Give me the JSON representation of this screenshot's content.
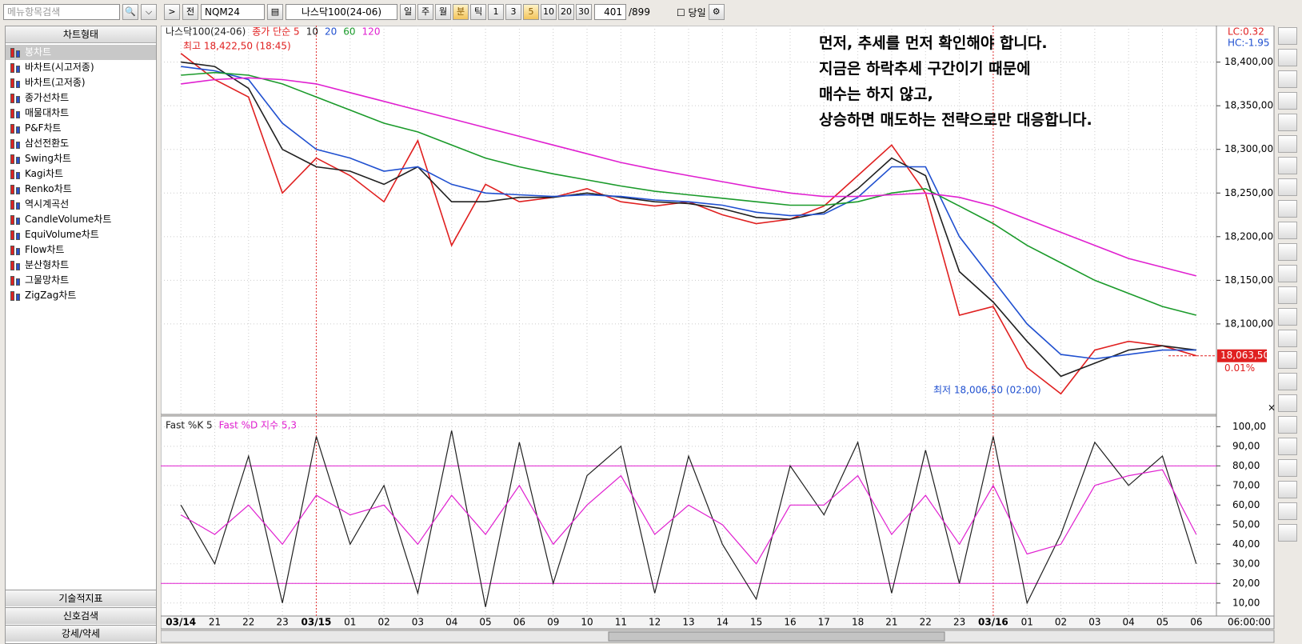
{
  "search": {
    "placeholder": "메뉴항목검색"
  },
  "toolbar": {
    "nav": ">",
    "prev": "전",
    "code": "NQM24",
    "name": "나스닥100(24-06)",
    "periods": [
      "일",
      "주",
      "월",
      "분",
      "틱",
      "1",
      "3",
      "5",
      "10",
      "20",
      "30"
    ],
    "count": "401",
    "total": "/899",
    "today": "당일"
  },
  "sidebar": {
    "header": "차트형태",
    "items": [
      "봉차트",
      "바차트(시고저종)",
      "바차트(고저종)",
      "종가선차트",
      "매물대차트",
      "P&F차트",
      "삼선전환도",
      "Swing차트",
      "Kagi차트",
      "Renko차트",
      "역시계곡선",
      "CandleVolume차트",
      "EquiVolume차트",
      "Flow차트",
      "분산형차트",
      "그물망차트",
      "ZigZag차트"
    ],
    "tabs": [
      "기술적지표",
      "신호검색",
      "강세/약세"
    ]
  },
  "annotation": [
    "먼저, 추세를 먼저 확인해야 합니다.",
    "지금은 하락추세 구간이기 때문에",
    "매수는 하지 않고,",
    "상승하면 매도하는 전략으로만 대응합니다."
  ],
  "x_readout": "06:00:00",
  "chart_data": [
    {
      "type": "line",
      "title": "나스닥100(24-06)",
      "categories": [
        "03/14",
        "21",
        "22",
        "23",
        "03/15",
        "01",
        "02",
        "03",
        "04",
        "05",
        "06",
        "09",
        "10",
        "11",
        "12",
        "13",
        "14",
        "15",
        "16",
        "17",
        "18",
        "21",
        "22",
        "23",
        "03/16",
        "01",
        "02",
        "03",
        "04",
        "05",
        "06"
      ],
      "series": [
        {
          "name": "종가 단순 5",
          "color": "#e02020",
          "values": [
            18410,
            18380,
            18360,
            18250,
            18290,
            18270,
            18240,
            18310,
            18190,
            18260,
            18240,
            18245,
            18255,
            18240,
            18235,
            18240,
            18225,
            18215,
            18220,
            18235,
            18270,
            18305,
            18250,
            18110,
            18120,
            18050,
            18020,
            18070,
            18080,
            18075,
            18063.5
          ]
        },
        {
          "name": "10",
          "color": "#202020",
          "values": [
            18400,
            18395,
            18370,
            18300,
            18280,
            18275,
            18260,
            18280,
            18240,
            18240,
            18245,
            18245,
            18250,
            18245,
            18240,
            18238,
            18232,
            18222,
            18220,
            18228,
            18255,
            18290,
            18270,
            18160,
            18125,
            18080,
            18040,
            18055,
            18070,
            18075,
            18070
          ]
        },
        {
          "name": "20",
          "color": "#2050d0",
          "values": [
            18395,
            18390,
            18380,
            18330,
            18300,
            18290,
            18275,
            18280,
            18260,
            18250,
            18248,
            18246,
            18248,
            18246,
            18242,
            18240,
            18236,
            18228,
            18224,
            18226,
            18245,
            18280,
            18280,
            18200,
            18150,
            18100,
            18065,
            18060,
            18065,
            18070,
            18070
          ]
        },
        {
          "name": "60",
          "color": "#1a9a2a",
          "values": [
            18385,
            18388,
            18385,
            18375,
            18360,
            18345,
            18330,
            18320,
            18305,
            18290,
            18280,
            18272,
            18265,
            18258,
            18252,
            18248,
            18244,
            18240,
            18236,
            18236,
            18240,
            18250,
            18255,
            18235,
            18215,
            18190,
            18170,
            18150,
            18135,
            18120,
            18110
          ]
        },
        {
          "name": "120",
          "color": "#e020d0",
          "values": [
            18375,
            18380,
            18382,
            18380,
            18375,
            18365,
            18355,
            18345,
            18335,
            18325,
            18315,
            18305,
            18295,
            18285,
            18277,
            18270,
            18263,
            18256,
            18250,
            18246,
            18246,
            18248,
            18250,
            18245,
            18235,
            18220,
            18205,
            18190,
            18175,
            18165,
            18155
          ]
        }
      ],
      "ylim": [
        18000,
        18440
      ],
      "yticks": [
        {
          "value": 18100,
          "label": "18,100,00"
        },
        {
          "value": 18150,
          "label": "18,150,00"
        },
        {
          "value": 18200,
          "label": "18,200,00"
        },
        {
          "value": 18250,
          "label": "18,250,00"
        },
        {
          "value": 18300,
          "label": "18,300,00"
        },
        {
          "value": 18350,
          "label": "18,350,00"
        },
        {
          "value": 18400,
          "label": "18,400,00"
        }
      ],
      "grid": true,
      "high_label": "최고 18,422,50 (18:45)",
      "low_label": "최저 18,006,50 (02:00)",
      "lc": "LC:0.32",
      "hc": "HC:-1.95",
      "last_price": {
        "value": 18063.5,
        "label": "18,063,50"
      },
      "change": "0.01%"
    },
    {
      "type": "line",
      "series": [
        {
          "name": "Fast %K 5",
          "color": "#202020",
          "values": [
            60,
            30,
            85,
            10,
            95,
            40,
            70,
            15,
            98,
            8,
            92,
            20,
            75,
            90,
            15,
            85,
            40,
            12,
            80,
            55,
            92,
            15,
            88,
            20,
            95,
            10,
            45,
            92,
            70,
            85,
            30
          ]
        },
        {
          "name": "Fast %D 지수 5,3",
          "color": "#e020d0",
          "values": [
            55,
            45,
            60,
            40,
            65,
            55,
            60,
            40,
            65,
            45,
            70,
            40,
            60,
            75,
            45,
            60,
            50,
            30,
            60,
            60,
            75,
            45,
            65,
            40,
            70,
            35,
            40,
            70,
            75,
            78,
            45
          ]
        }
      ],
      "ylim": [
        5,
        103
      ],
      "yticks": [
        {
          "value": 10,
          "label": "10,00"
        },
        {
          "value": 20,
          "label": "20,00"
        },
        {
          "value": 30,
          "label": "30,00"
        },
        {
          "value": 40,
          "label": "40,00"
        },
        {
          "value": 50,
          "label": "50,00"
        },
        {
          "value": 60,
          "label": "60,00"
        },
        {
          "value": 70,
          "label": "70,00"
        },
        {
          "value": 80,
          "label": "80,00"
        },
        {
          "value": 90,
          "label": "90,00"
        },
        {
          "value": 100,
          "label": "100,00"
        }
      ],
      "reference_lines": [
        20,
        80
      ],
      "grid": true
    }
  ]
}
